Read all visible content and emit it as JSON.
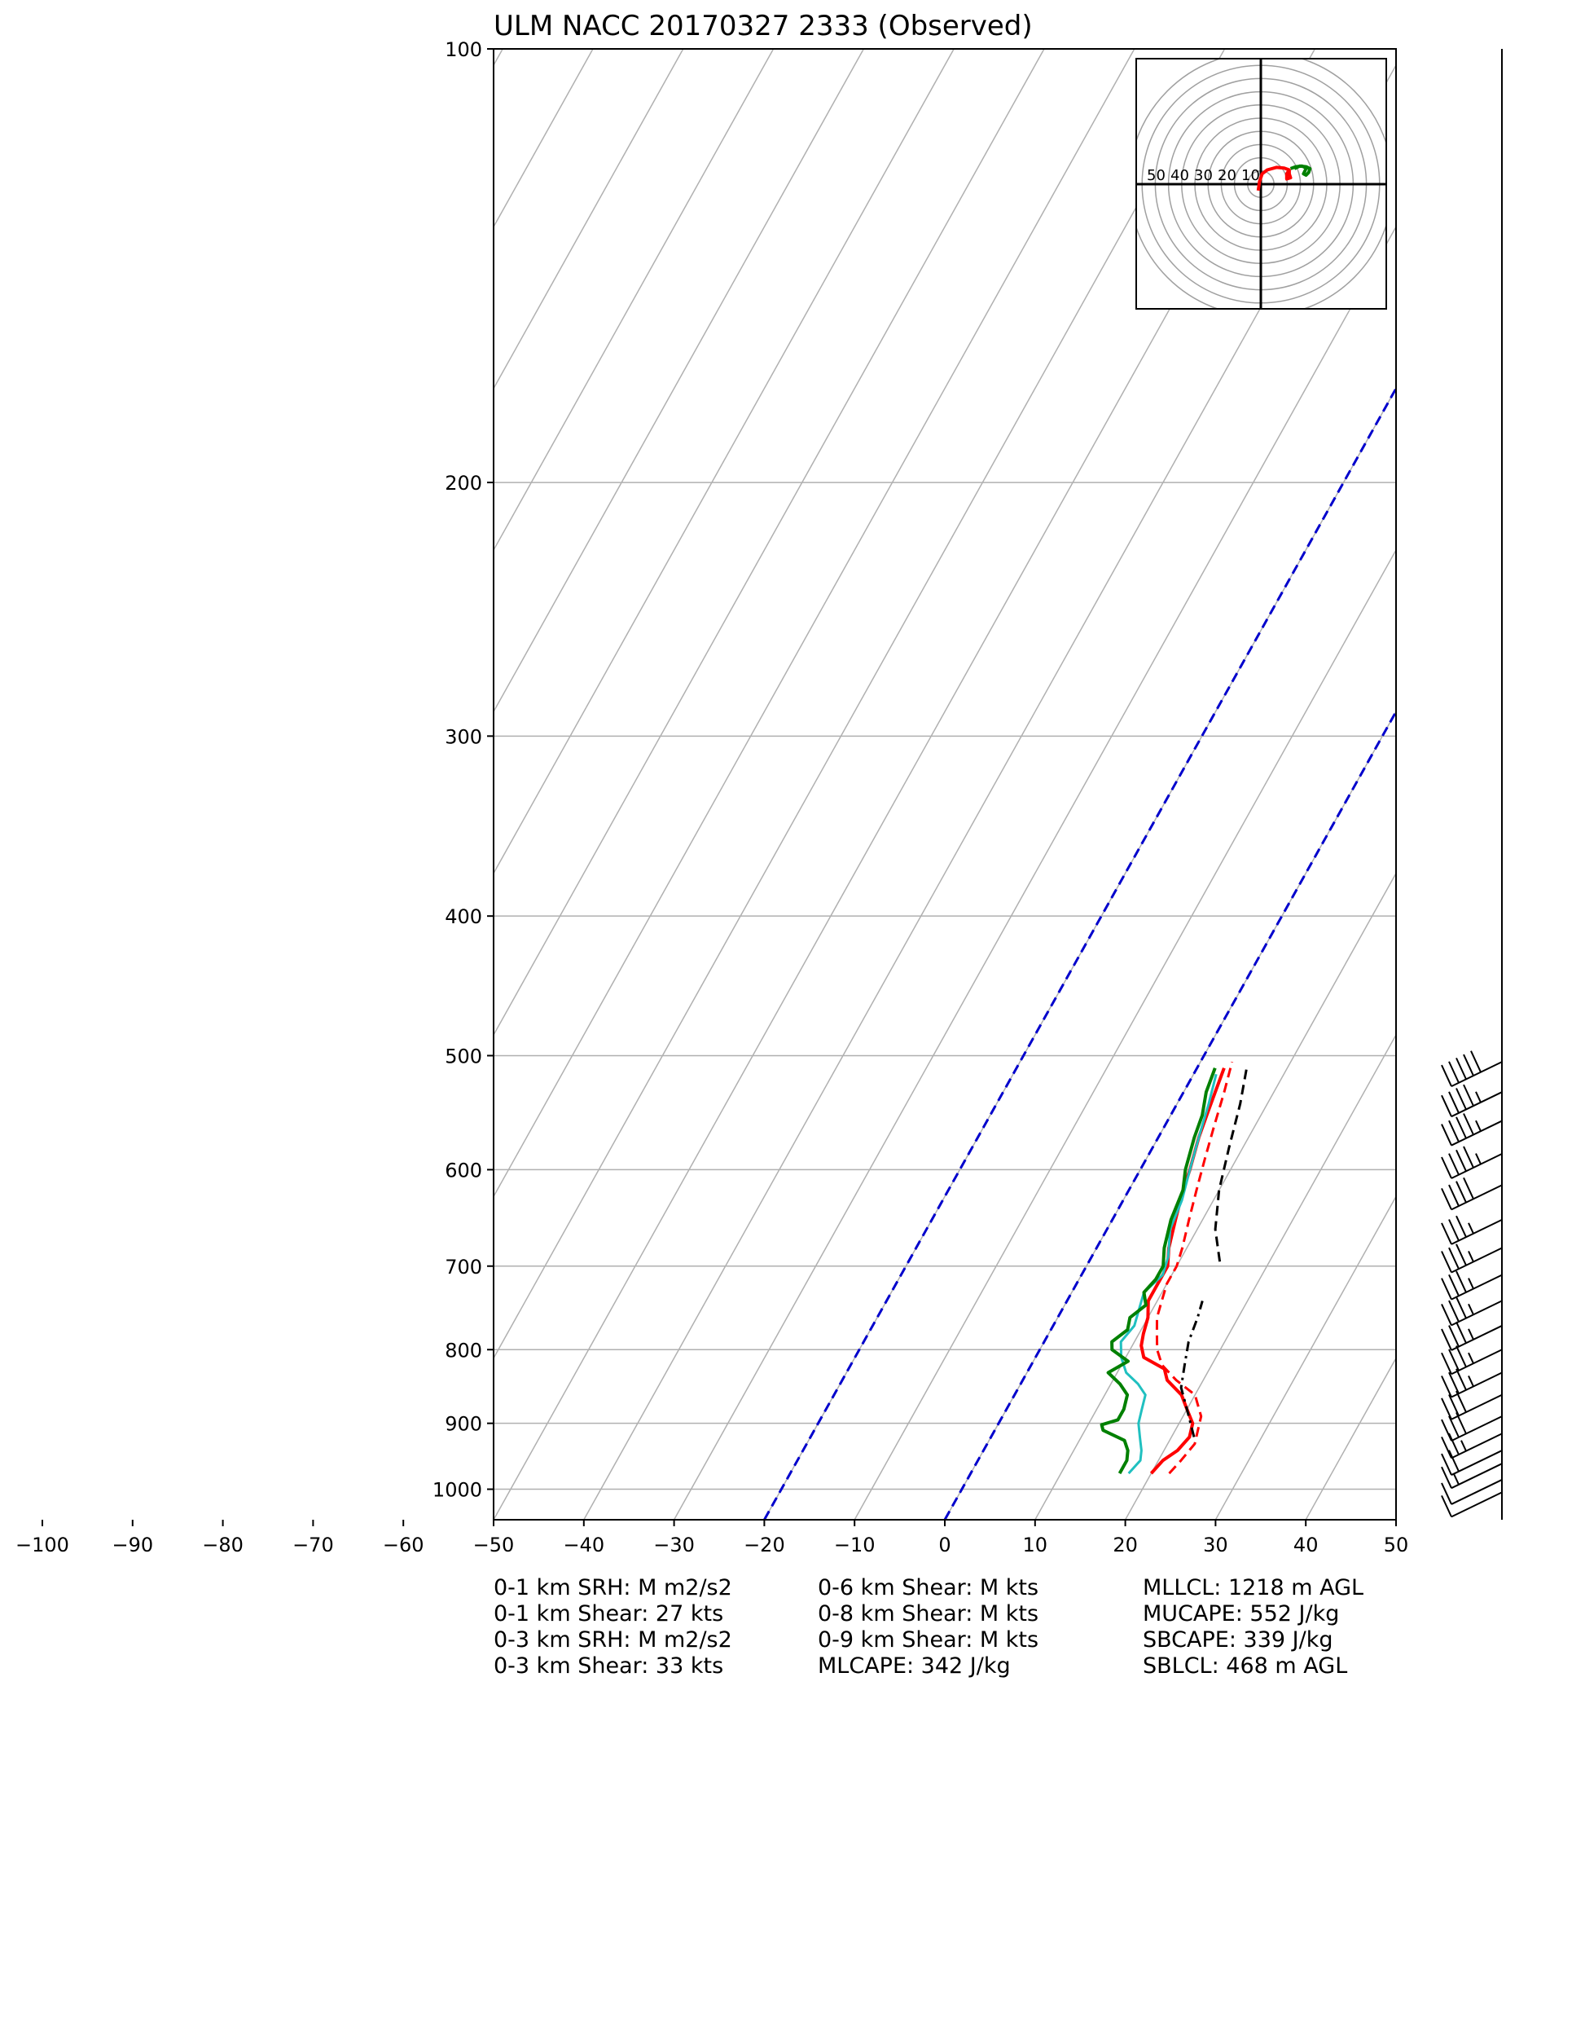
{
  "chart_data": {
    "type": "line",
    "subtype": "skew-t log-p sounding",
    "title": "ULM NACC 20170327 2333   (Observed)",
    "xlabel": "",
    "ylabel": "",
    "xlim": [
      -50,
      50
    ],
    "ylim": [
      1050,
      100
    ],
    "y_scale": "log",
    "grid": true,
    "x_ticks": [
      -100,
      -90,
      -80,
      -70,
      -60,
      -50,
      -40,
      -30,
      -20,
      -10,
      0,
      10,
      20,
      30,
      40,
      50
    ],
    "y_ticks": [
      100,
      200,
      300,
      400,
      500,
      600,
      700,
      800,
      900,
      1000
    ],
    "isotherms_dashed_blue": [
      -20,
      0
    ],
    "series": [
      {
        "color": "#ff0000",
        "dash": "solid",
        "width": 4,
        "points": [
          [
            975,
            20
          ],
          [
            955,
            20.5
          ],
          [
            940,
            21.5
          ],
          [
            920,
            22
          ],
          [
            900,
            21.5
          ],
          [
            880,
            20
          ],
          [
            860,
            18.5
          ],
          [
            840,
            16
          ],
          [
            825,
            15
          ],
          [
            810,
            12
          ],
          [
            795,
            11
          ],
          [
            780,
            10.5
          ],
          [
            760,
            10
          ],
          [
            740,
            9
          ],
          [
            720,
            9
          ],
          [
            700,
            9
          ],
          [
            680,
            8
          ],
          [
            650,
            7
          ],
          [
            620,
            6
          ],
          [
            600,
            5.5
          ],
          [
            570,
            4.5
          ],
          [
            550,
            4
          ],
          [
            530,
            3.5
          ],
          [
            510,
            3
          ]
        ]
      },
      {
        "color": "#ff0000",
        "dash": "dashed",
        "width": 3,
        "points": [
          [
            975,
            22
          ],
          [
            955,
            22.5
          ],
          [
            930,
            23
          ],
          [
            910,
            22.5
          ],
          [
            890,
            22
          ],
          [
            860,
            20
          ],
          [
            840,
            17
          ],
          [
            820,
            14.5
          ],
          [
            800,
            13
          ],
          [
            780,
            12
          ],
          [
            760,
            11
          ],
          [
            740,
            10.5
          ],
          [
            720,
            10
          ],
          [
            700,
            10
          ],
          [
            680,
            9.5
          ],
          [
            650,
            8.5
          ],
          [
            620,
            7.5
          ],
          [
            590,
            6.5
          ],
          [
            560,
            5.5
          ],
          [
            530,
            4.5
          ],
          [
            505,
            3.5
          ]
        ]
      },
      {
        "color": "#20c0c0",
        "dash": "solid",
        "width": 3,
        "points": [
          [
            975,
            17.5
          ],
          [
            955,
            18
          ],
          [
            940,
            17.5
          ],
          [
            920,
            16.5
          ],
          [
            900,
            15.5
          ],
          [
            880,
            15
          ],
          [
            860,
            14.5
          ],
          [
            845,
            13
          ],
          [
            830,
            11
          ],
          [
            810,
            9.5
          ],
          [
            790,
            8.5
          ],
          [
            770,
            9
          ],
          [
            750,
            8.5
          ],
          [
            730,
            8
          ],
          [
            710,
            9
          ],
          [
            690,
            8.5
          ],
          [
            660,
            7
          ],
          [
            630,
            6.5
          ],
          [
            600,
            5.5
          ],
          [
            570,
            4.5
          ],
          [
            540,
            3.5
          ],
          [
            515,
            2.5
          ]
        ]
      },
      {
        "color": "#008000",
        "dash": "solid",
        "width": 4,
        "points": [
          [
            975,
            16.5
          ],
          [
            955,
            16.5
          ],
          [
            940,
            16
          ],
          [
            925,
            15
          ],
          [
            910,
            12
          ],
          [
            902,
            11.5
          ],
          [
            895,
            13
          ],
          [
            880,
            13
          ],
          [
            860,
            12.5
          ],
          [
            845,
            11
          ],
          [
            830,
            9
          ],
          [
            815,
            10.5
          ],
          [
            800,
            8
          ],
          [
            790,
            7.5
          ],
          [
            775,
            8.5
          ],
          [
            760,
            8
          ],
          [
            745,
            9
          ],
          [
            730,
            8
          ],
          [
            715,
            8.5
          ],
          [
            700,
            8.5
          ],
          [
            680,
            7.5
          ],
          [
            650,
            6.5
          ],
          [
            620,
            6
          ],
          [
            600,
            5
          ],
          [
            570,
            4
          ],
          [
            550,
            3.5
          ],
          [
            530,
            2.5
          ],
          [
            510,
            2
          ]
        ]
      },
      {
        "color": "#000000",
        "dash": "dashed",
        "width": 3,
        "points": [
          [
            695,
            14.5
          ],
          [
            660,
            12
          ],
          [
            620,
            10
          ],
          [
            580,
            8.5
          ],
          [
            540,
            7
          ],
          [
            510,
            5.5
          ]
        ]
      },
      {
        "color": "#000000",
        "dash": "dashdot",
        "width": 3,
        "points": [
          [
            920,
            22.5
          ],
          [
            880,
            20
          ],
          [
            850,
            18
          ],
          [
            820,
            17
          ],
          [
            790,
            16
          ],
          [
            760,
            15.5
          ],
          [
            740,
            15
          ]
        ]
      }
    ],
    "wind_barbs_right": [
      {
        "p": 505,
        "speed": 50
      },
      {
        "p": 530,
        "speed": 45
      },
      {
        "p": 555,
        "speed": 45
      },
      {
        "p": 585,
        "speed": 45
      },
      {
        "p": 615,
        "speed": 40
      },
      {
        "p": 650,
        "speed": 35
      },
      {
        "p": 680,
        "speed": 35
      },
      {
        "p": 710,
        "speed": 35
      },
      {
        "p": 740,
        "speed": 35
      },
      {
        "p": 770,
        "speed": 35
      },
      {
        "p": 800,
        "speed": 35
      },
      {
        "p": 830,
        "speed": 35
      },
      {
        "p": 860,
        "speed": 30
      },
      {
        "p": 890,
        "speed": 30
      },
      {
        "p": 915,
        "speed": 25
      },
      {
        "p": 940,
        "speed": 20
      },
      {
        "p": 960,
        "speed": 15
      },
      {
        "p": 985,
        "speed": 10
      },
      {
        "p": 1005,
        "speed": 10
      }
    ],
    "hodograph": {
      "ring_labels": [
        "50",
        "40",
        "30",
        "20",
        "10"
      ],
      "ring_step": 10,
      "max_ring": 100,
      "red_trace": [
        [
          -2,
          -5
        ],
        [
          -1,
          2
        ],
        [
          1,
          8
        ],
        [
          5,
          11
        ],
        [
          12,
          13
        ],
        [
          18,
          12.5
        ],
        [
          22,
          11
        ],
        [
          22,
          8
        ],
        [
          23,
          5
        ],
        [
          20,
          4
        ],
        [
          20,
          8
        ],
        [
          22,
          11
        ]
      ],
      "green_trace": [
        [
          23,
          12
        ],
        [
          27,
          13.5
        ],
        [
          32,
          14
        ],
        [
          35,
          12.5
        ],
        [
          34,
          10
        ],
        [
          33,
          8
        ],
        [
          35,
          7
        ],
        [
          37,
          9
        ],
        [
          38,
          12
        ],
        [
          35,
          13.5
        ],
        [
          30,
          14
        ],
        [
          26,
          12
        ]
      ]
    }
  },
  "stats": {
    "col1": [
      "0-1 km SRH: M m2/s2",
      "0-1 km Shear: 27 kts",
      "0-3 km SRH: M m2/s2",
      "0-3 km Shear: 33 kts"
    ],
    "col2": [
      "0-6 km Shear: M kts",
      "0-8 km Shear: M kts",
      "0-9 km Shear: M kts",
      "MLCAPE: 342 J/kg"
    ],
    "col3": [
      "MLLCL: 1218 m AGL",
      "MUCAPE: 552 J/kg",
      "SBCAPE: 339 J/kg",
      "SBLCL: 468 m AGL"
    ]
  }
}
